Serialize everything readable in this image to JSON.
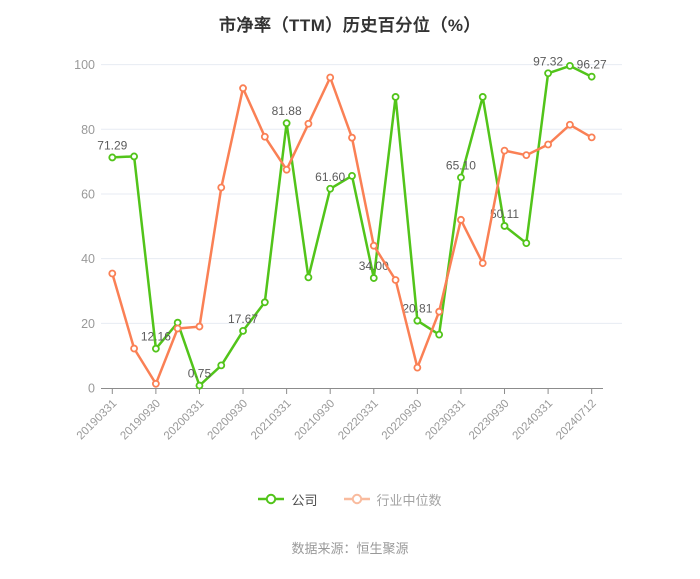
{
  "title": "市净率（TTM）历史百分位（%）",
  "source": "数据来源：恒生聚源",
  "legend": {
    "items": [
      {
        "id": "company",
        "label": "公司",
        "icon_color": "#52c41a",
        "text_color": "#4d4d4d"
      },
      {
        "id": "industry-median",
        "label": "行业中位数",
        "icon_color": "#f9bb9e",
        "text_color": "#a3a3a3"
      }
    ]
  },
  "colors": {
    "background": "#ffffff",
    "title": "#333333",
    "grid_line": "#e7ebf3",
    "axis_line": "#8c8c8c",
    "axis_tick": "#8c8c8c",
    "y_axis_label": "#999999",
    "x_axis_label": "#999999",
    "point_label": "#5b5b5b",
    "company_series": "#52c41a",
    "industry_series": "#fa8055"
  },
  "chart_data": {
    "type": "line",
    "title": "市净率（TTM）历史百分位（%）",
    "xlabel": "",
    "ylabel": "",
    "ylim": [
      0,
      100
    ],
    "yticks": [
      0,
      20,
      40,
      60,
      80,
      100
    ],
    "grid": true,
    "legend_position": "bottom",
    "x_labels_shown_every": 2,
    "categories": [
      "20190331",
      "20190630",
      "20190930",
      "20191231",
      "20200331",
      "20200630",
      "20200930",
      "20201231",
      "20210331",
      "20210630",
      "20210930",
      "20211231",
      "20220331",
      "20220630",
      "20220930",
      "20221231",
      "20230331",
      "20230630",
      "20230930",
      "20231231",
      "20240331",
      "20240630",
      "20240712"
    ],
    "x_tick_labels": [
      "20190331",
      "20190930",
      "20200331",
      "20200930",
      "20210331",
      "20210930",
      "20220331",
      "20220930",
      "20230331",
      "20230930",
      "20240331",
      "20240712"
    ],
    "series": [
      {
        "id": "company",
        "name": "公司",
        "color": "#52c41a",
        "values": [
          71.29,
          71.6,
          12.16,
          20.2,
          0.75,
          7.0,
          17.67,
          26.5,
          81.88,
          34.2,
          61.6,
          65.6,
          34.0,
          90.0,
          20.81,
          16.5,
          65.1,
          90.0,
          50.11,
          44.8,
          97.32,
          99.6,
          96.27
        ],
        "point_labels": [
          "71.29",
          null,
          "12.16",
          null,
          "0.75",
          null,
          "17.67",
          null,
          "81.88",
          null,
          "61.60",
          null,
          "34.00",
          null,
          "20.81",
          null,
          "65.10",
          null,
          "50.11",
          null,
          "97.32",
          null,
          "96.27"
        ]
      },
      {
        "id": "industry-median",
        "name": "行业中位数",
        "color": "#fa8055",
        "values": [
          35.4,
          12.2,
          1.3,
          18.4,
          19.0,
          62.0,
          92.7,
          77.7,
          67.5,
          81.7,
          96.0,
          77.4,
          44.0,
          33.4,
          6.3,
          23.6,
          52.0,
          38.6,
          73.4,
          72.0,
          75.3,
          81.4,
          77.5
        ],
        "point_labels": null
      }
    ]
  }
}
